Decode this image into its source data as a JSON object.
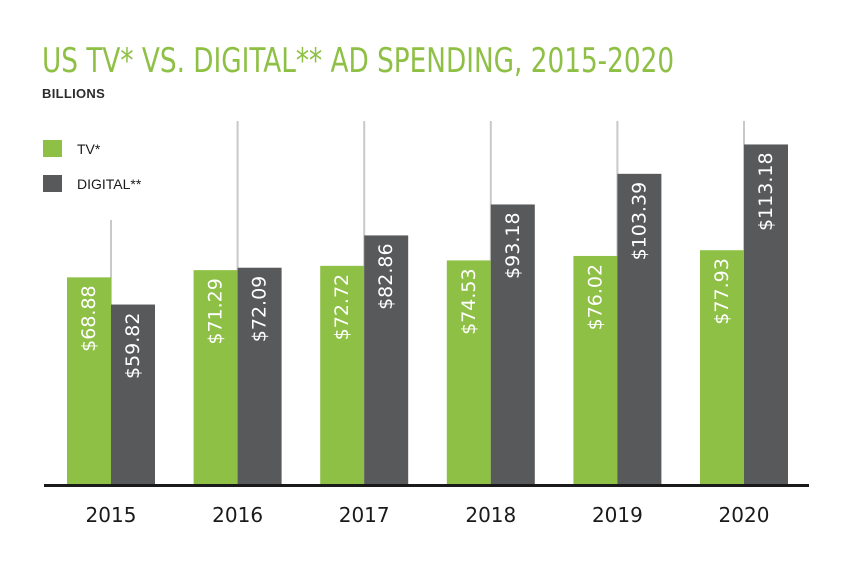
{
  "chart_data": {
    "type": "bar",
    "title": "US TV* VS. DIGITAL** AD SPENDING, 2015-2020",
    "subtitle": "BILLIONS",
    "categories": [
      "2015",
      "2016",
      "2017",
      "2018",
      "2019",
      "2020"
    ],
    "series": [
      {
        "name": "TV*",
        "color": "#8fc046",
        "values": [
          68.88,
          71.29,
          72.72,
          74.53,
          76.02,
          77.93
        ],
        "labels": [
          "$68.88",
          "$71.29",
          "$72.72",
          "$74.53",
          "$76.02",
          "$77.93"
        ]
      },
      {
        "name": "DIGITAL**",
        "color": "#58595b",
        "values": [
          59.82,
          72.09,
          82.86,
          93.18,
          103.39,
          113.18
        ],
        "labels": [
          "$59.82",
          "$72.09",
          "$82.86",
          "$93.18",
          "$103.39",
          "$113.18"
        ]
      }
    ],
    "ylim": [
      0,
      120
    ],
    "legend": "top-left",
    "grid": false
  }
}
